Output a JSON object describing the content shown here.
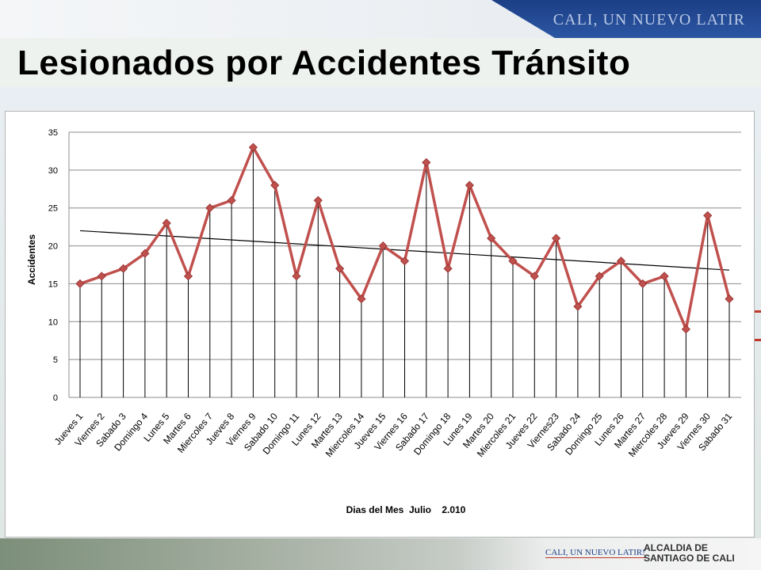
{
  "header": {
    "logo_text": "CALI, UN NUEVO LATIR",
    "title": "Lesionados por Accidentes Tránsito"
  },
  "footer": {
    "logo_left": "CALI, UN NUEVO LATIR!",
    "logo_right_line1": "ALCALDIA DE",
    "logo_right_line2": "SANTIAGO DE CALI"
  },
  "colors": {
    "series": "#c0504d",
    "trendline": "#000000",
    "header_band": "#1c3f86"
  },
  "chart_data": {
    "type": "line",
    "title": "",
    "xlabel": "Dias del Mes  Julio    2.010",
    "ylabel": "Accidentes",
    "ylim": [
      0,
      35
    ],
    "yticks": [
      0,
      5,
      10,
      15,
      20,
      25,
      30,
      35
    ],
    "grid": "horizontal",
    "drop_lines": true,
    "legend": "none",
    "categories": [
      "Jueves 1",
      "Viernes 2",
      "Sabado  3",
      "Domingo  4",
      "Lunes 5",
      "Martes  6",
      "Miercoles 7",
      "Jueves 8",
      "Viernes 9",
      "Sabado  10",
      "Domingo  11",
      "Lunes 12",
      "Martes  13",
      "Miercoles 14",
      "Jueves  15",
      "Viernes  16",
      "Sabado  17",
      "Domingo  18",
      "Lunes  19",
      "Martes  20",
      "Miercoles 21",
      "Jueves  22",
      "Viernes23",
      "Sabado  24",
      "Domingo  25",
      "Lunes  26",
      "Martes  27",
      "Miercoles 28",
      "Jueves  29",
      "Viernes  30",
      "Sabado  31"
    ],
    "series": [
      {
        "values": [
          15,
          16,
          17,
          19,
          23,
          16,
          25,
          26,
          33,
          28,
          16,
          26,
          17,
          13,
          20,
          18,
          31,
          17,
          28,
          21,
          18,
          16,
          21,
          12,
          16,
          18,
          15,
          16,
          9,
          24,
          13
        ]
      }
    ],
    "trendline": {
      "start": 22,
      "end": 16.8
    }
  }
}
